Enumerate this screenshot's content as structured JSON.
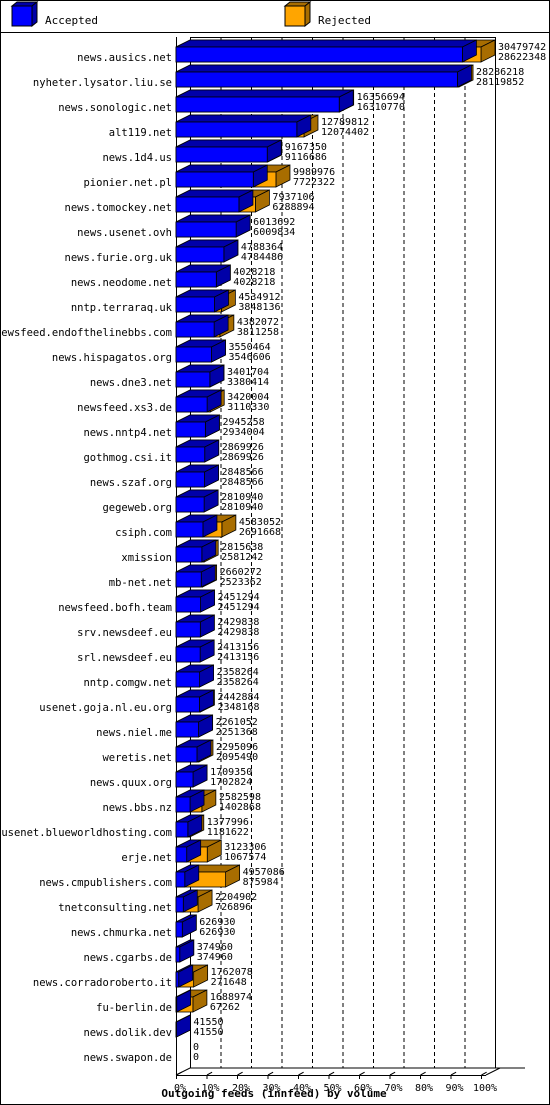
{
  "legend": {
    "accepted": "Accepted",
    "rejected": "Rejected"
  },
  "colors": {
    "accepted": "#0000ff",
    "accepted_dark": "#0000a8",
    "rejected": "#ffa500",
    "rejected_dark": "#a86d00",
    "grid": "#000000"
  },
  "chart_data": {
    "type": "bar",
    "orientation": "horizontal",
    "stacked": "overlay",
    "title": "Outgoing feeds (innfeed) by volume",
    "xlim": [
      0,
      100
    ],
    "xticks": [
      "0%",
      "10%",
      "20%",
      "30%",
      "40%",
      "50%",
      "60%",
      "70%",
      "80%",
      "90%",
      "100%"
    ],
    "grid": true,
    "legend_position": "top",
    "max_value": 30479742,
    "categories": [
      "news.ausics.net",
      "nyheter.lysator.liu.se",
      "news.sonologic.net",
      "alt119.net",
      "news.1d4.us",
      "pionier.net.pl",
      "news.tomockey.net",
      "news.usenet.ovh",
      "news.furie.org.uk",
      "news.neodome.net",
      "nntp.terraraq.uk",
      "newsfeed.endofthelinebbs.com",
      "news.hispagatos.org",
      "news.dne3.net",
      "newsfeed.xs3.de",
      "news.nntp4.net",
      "gothmog.csi.it",
      "news.szaf.org",
      "gegeweb.org",
      "csiph.com",
      "xmission",
      "mb-net.net",
      "newsfeed.bofh.team",
      "srv.newsdeef.eu",
      "srl.newsdeef.eu",
      "nntp.comgw.net",
      "usenet.goja.nl.eu.org",
      "news.niel.me",
      "weretis.net",
      "news.quux.org",
      "news.bbs.nz",
      "usenet.blueworldhosting.com",
      "erje.net",
      "news.cmpublishers.com",
      "tnetconsulting.net",
      "news.chmurka.net",
      "news.cgarbs.de",
      "news.corradoroberto.it",
      "fu-berlin.de",
      "news.dolik.dev",
      "news.swapon.de"
    ],
    "series": [
      {
        "name": "Accepted",
        "values": [
          28622348,
          28119852,
          16310770,
          12074402,
          9116686,
          7722322,
          6288894,
          6009834,
          4784486,
          4028218,
          3848136,
          3811258,
          3546606,
          3380414,
          3110330,
          2934004,
          2869926,
          2848566,
          2810940,
          2691668,
          2581242,
          2523362,
          2451294,
          2429838,
          2413156,
          2358264,
          2348168,
          2251368,
          2095490,
          1702824,
          1402868,
          1181622,
          1067574,
          875984,
          726896,
          626930,
          374960,
          271648,
          67262,
          41550,
          0
        ]
      },
      {
        "name": "Rejected",
        "values": [
          30479742,
          28286218,
          16356694,
          12789812,
          9167350,
          9989976,
          7937106,
          6013692,
          4788364,
          4028218,
          4534912,
          4382072,
          3550464,
          3401704,
          3420004,
          2945258,
          2869926,
          2848566,
          2810940,
          4583052,
          2815638,
          2660272,
          2451294,
          2429838,
          2413156,
          2358264,
          2442884,
          2261052,
          2295096,
          1709350,
          2582598,
          1377996,
          3123306,
          4957086,
          2204902,
          626930,
          374960,
          1762078,
          1688974,
          41550,
          0
        ]
      }
    ]
  }
}
